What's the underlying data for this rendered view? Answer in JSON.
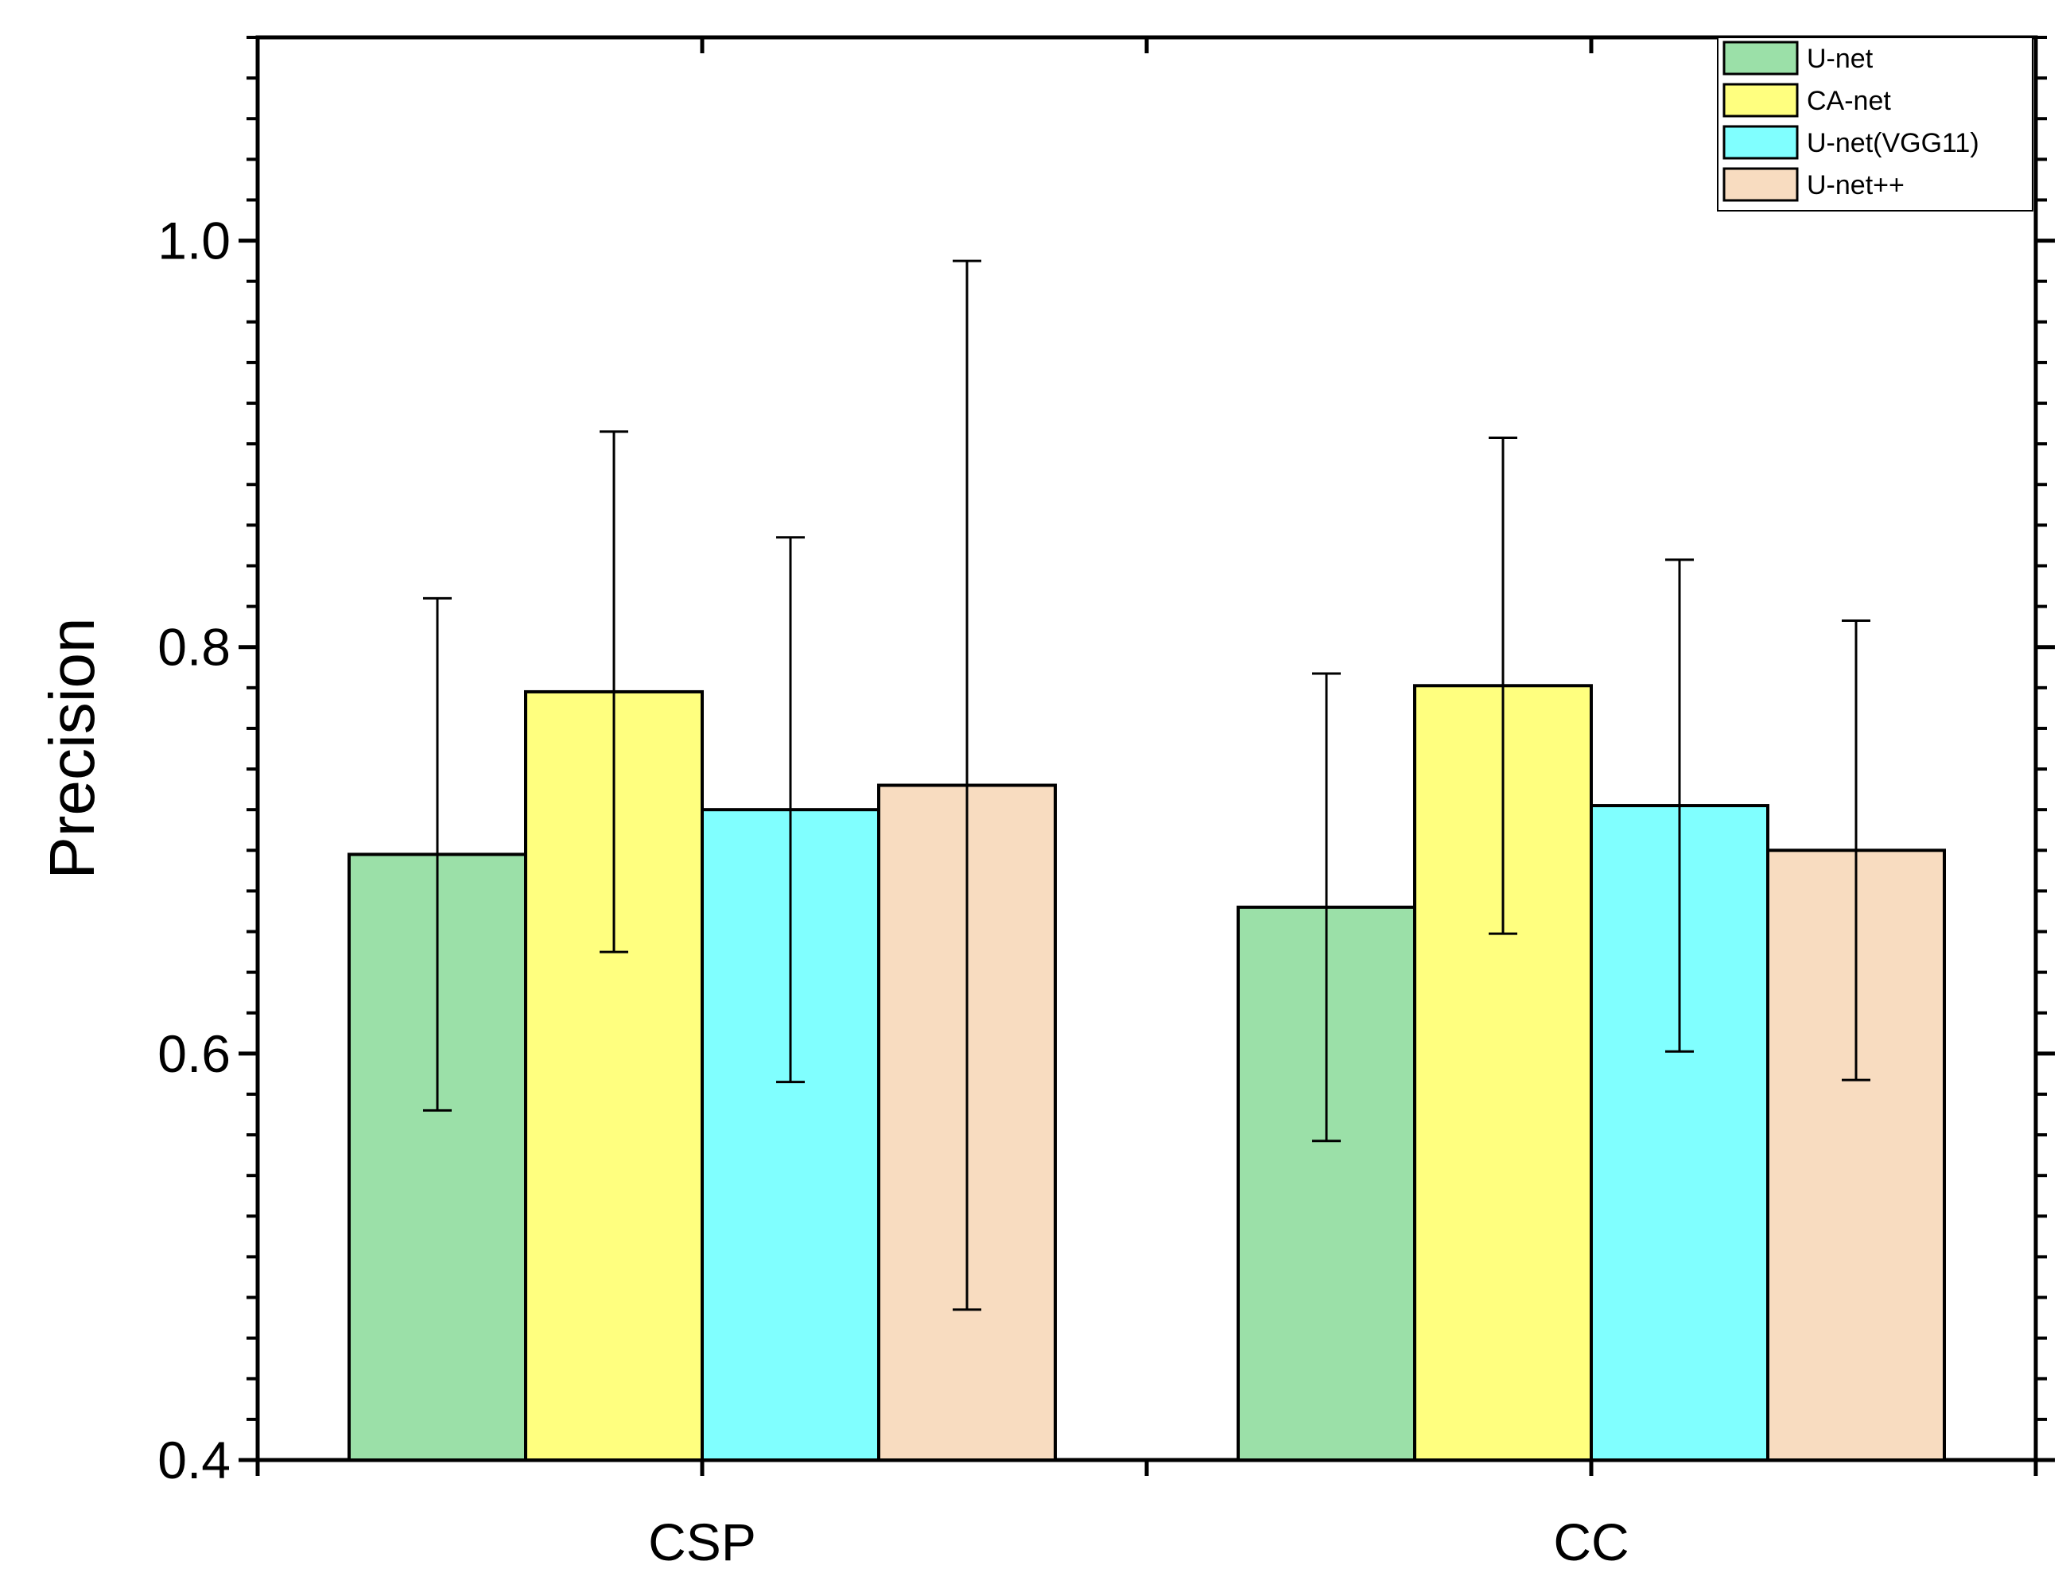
{
  "chart_data": {
    "type": "bar",
    "title": "",
    "xlabel": "",
    "ylabel": "Precision",
    "ylim": [
      0.4,
      1.1
    ],
    "y_major_ticks": [
      0.4,
      0.6,
      0.8,
      1.0
    ],
    "y_tick_labels": [
      "0.4",
      "0.6",
      "0.8",
      "1.0"
    ],
    "y_minor_step": 0.02,
    "categories": [
      "CSP",
      "CC"
    ],
    "grid": false,
    "legend_position": "top-right",
    "series": [
      {
        "name": "U-net",
        "color": "#9BE0A8",
        "values": [
          0.698,
          0.672
        ],
        "errors": [
          0.126,
          0.115
        ]
      },
      {
        "name": "CA-net",
        "color": "#FFFF7F",
        "values": [
          0.778,
          0.781
        ],
        "errors": [
          0.128,
          0.122
        ]
      },
      {
        "name": "U-net(VGG11)",
        "color": "#80FFFF",
        "values": [
          0.72,
          0.722
        ],
        "errors": [
          0.134,
          0.121
        ]
      },
      {
        "name": "U-net++",
        "color": "#F8DCC0",
        "values": [
          0.732,
          0.7
        ],
        "errors": [
          0.258,
          0.113
        ]
      }
    ]
  }
}
